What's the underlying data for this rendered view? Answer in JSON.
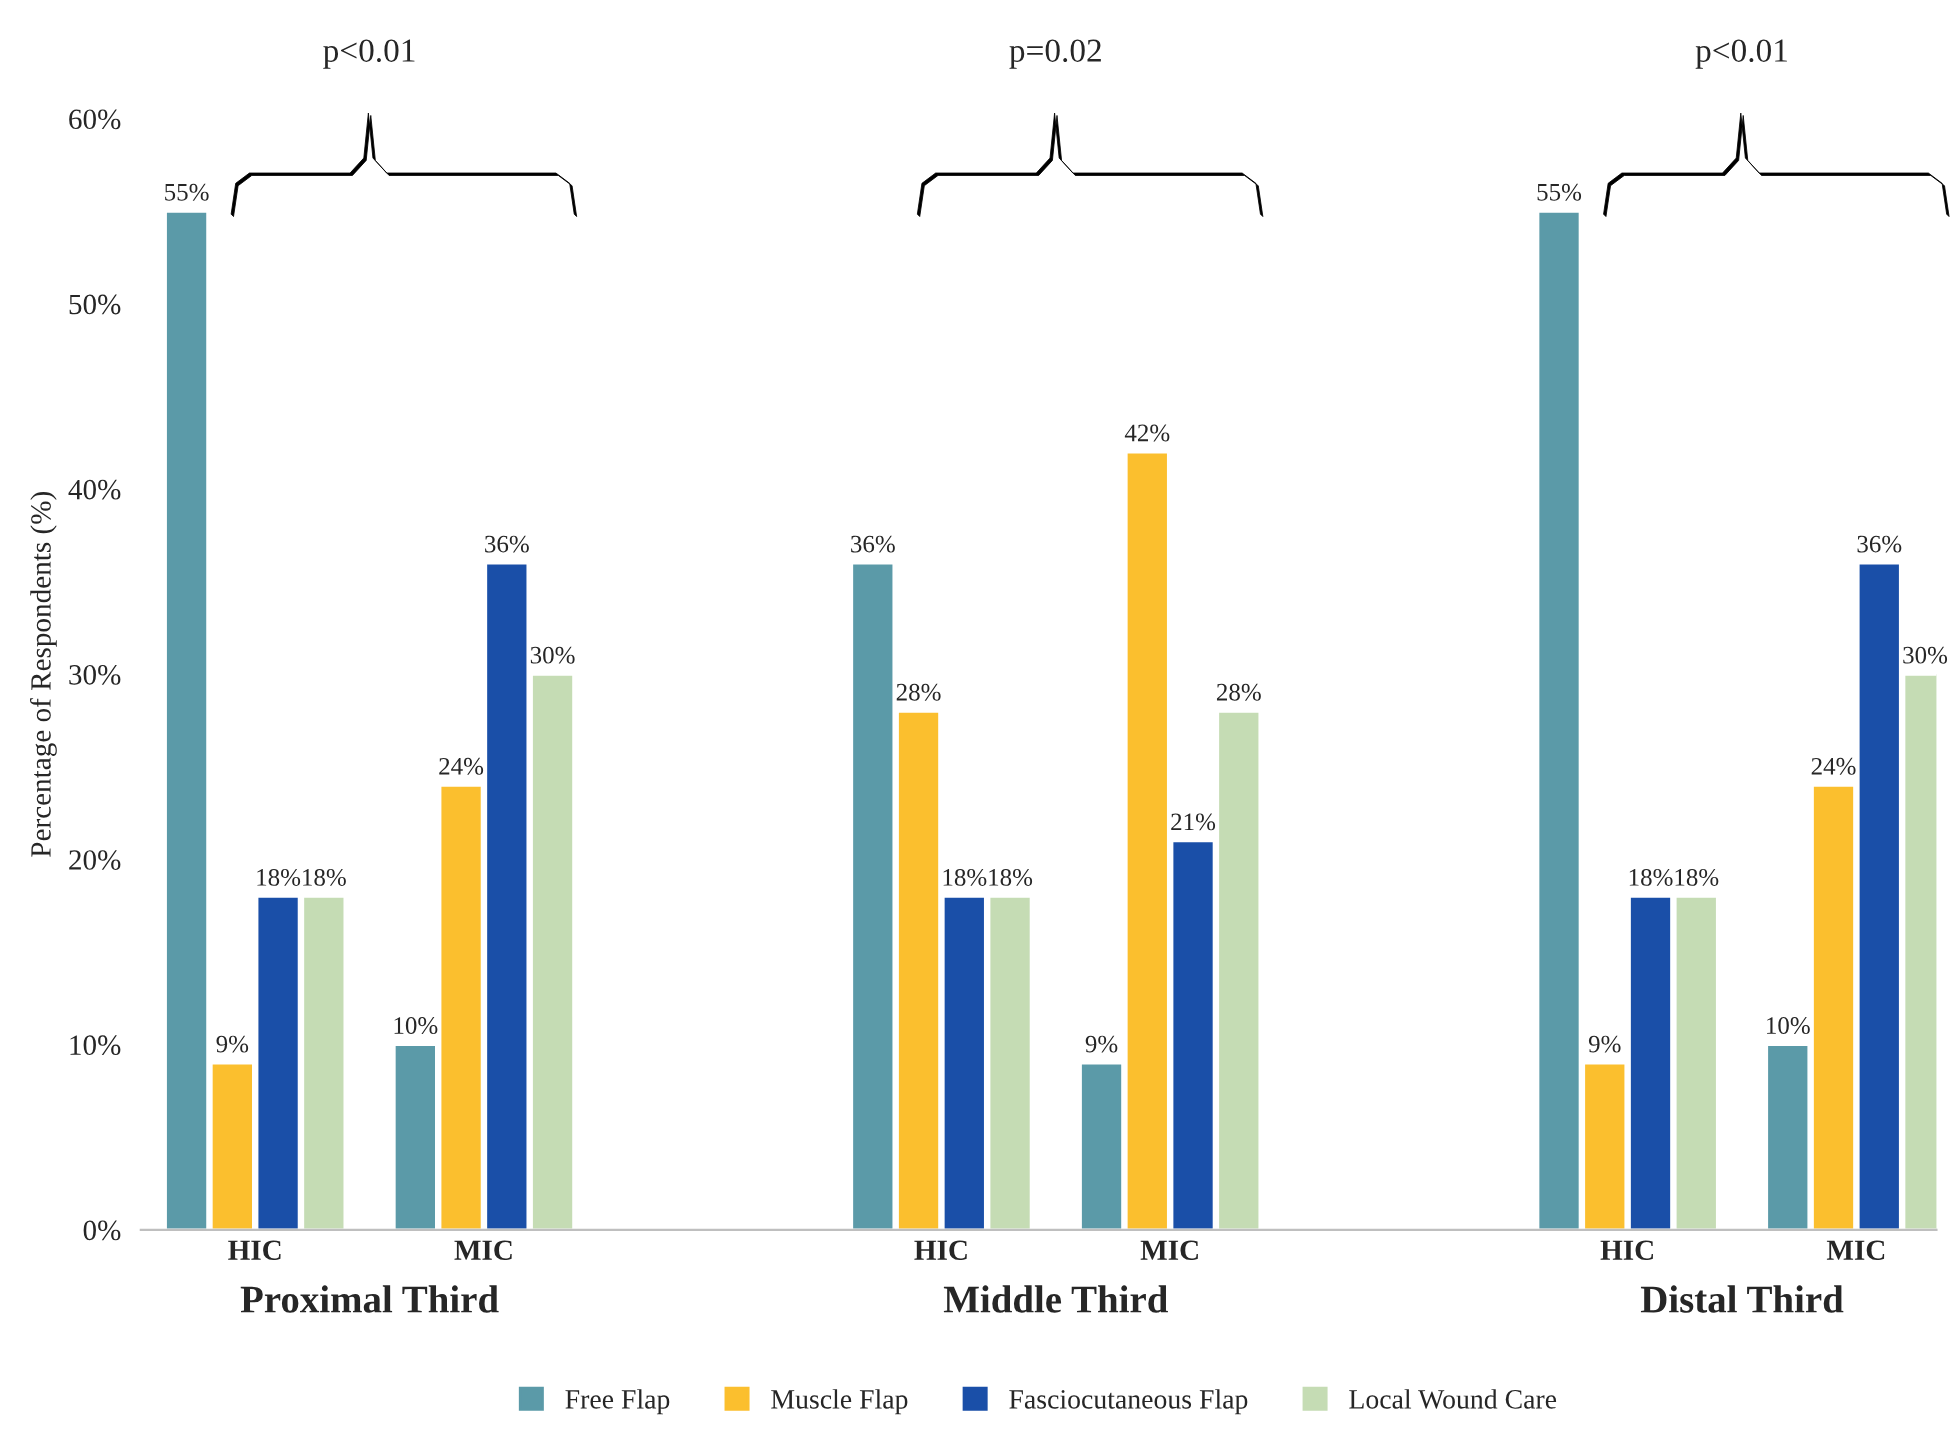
{
  "chart_data": {
    "type": "bar",
    "ylabel": "Percentage of Respondents (%)",
    "categories": [
      "HIC",
      "MIC",
      null,
      "HIC",
      "MIC",
      null,
      "HIC",
      "MIC"
    ],
    "series": [
      {
        "name": "Free Flap",
        "color": "#5b9aa8",
        "values": [
          55,
          10,
          null,
          36,
          9,
          null,
          55,
          10
        ],
        "value_labels": [
          "55%",
          "10%",
          null,
          "36%",
          "9%",
          null,
          "55%",
          "10%"
        ]
      },
      {
        "name": "Muscle Flap",
        "color": "#fbbf2e",
        "values": [
          9,
          24,
          null,
          28,
          42,
          null,
          9,
          24
        ],
        "value_labels": [
          "9%",
          "24%",
          null,
          "28%",
          "42%",
          null,
          "9%",
          "24%"
        ]
      },
      {
        "name": "Fasciocutaneous Flap",
        "color": "#1a4fa8",
        "values": [
          18,
          36,
          null,
          18,
          21,
          null,
          18,
          36
        ],
        "value_labels": [
          "18%",
          "36%",
          null,
          "18%",
          "21%",
          null,
          "18%",
          "36%"
        ]
      },
      {
        "name": "Local Wound Care",
        "color": "#c5dcb4",
        "values": [
          18,
          30,
          null,
          18,
          28,
          null,
          18,
          30
        ],
        "value_labels": [
          "18%",
          "30%",
          null,
          "18%",
          "28%",
          null,
          "18%",
          "30%"
        ]
      }
    ],
    "ylim": [
      0,
      60
    ],
    "yticks": [
      {
        "value": 0,
        "label": "0%"
      },
      {
        "value": 10,
        "label": "10%"
      },
      {
        "value": 20,
        "label": "20%"
      },
      {
        "value": 30,
        "label": "30%"
      },
      {
        "value": 40,
        "label": "40%"
      },
      {
        "value": 50,
        "label": "50%"
      },
      {
        "value": 60,
        "label": "60%"
      }
    ],
    "annotations": [
      "Proximal Third",
      "Middle Third",
      "Distal Third",
      "p<0.01",
      "p=0.02",
      "p<0.01"
    ],
    "grid": false,
    "legend": "bottom"
  }
}
